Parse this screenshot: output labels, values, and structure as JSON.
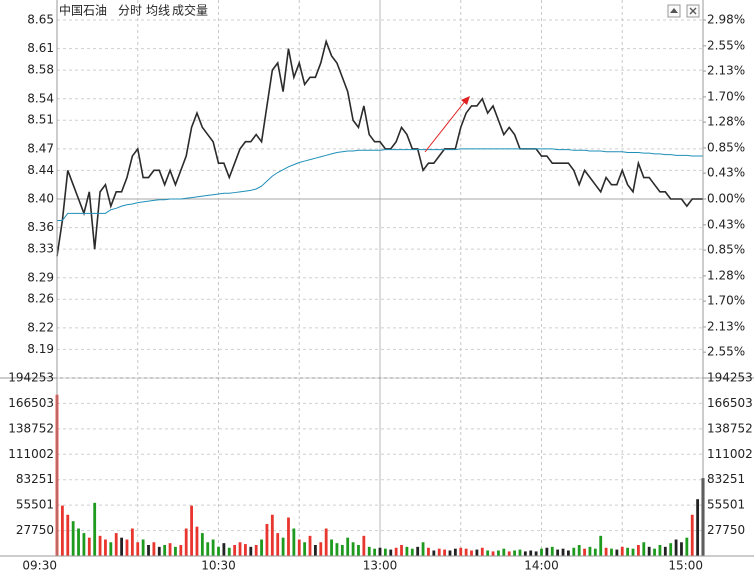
{
  "chart_data": [
    {
      "type": "line",
      "title": "中国石油",
      "subtitle": "分时",
      "ylim": [
        8.15,
        8.65
      ],
      "yticks": [
        8.65,
        8.61,
        8.58,
        8.54,
        8.51,
        8.47,
        8.44,
        {
          "value": 8.4,
          "label": "8.40"
        },
        8.36,
        8.33,
        8.29,
        8.26,
        8.22,
        8.19
      ],
      "y2lim": [
        -2.98,
        2.98
      ],
      "y2ticks": [
        {
          "value": 2.98,
          "label": "2.98%"
        },
        {
          "value": 2.55,
          "label": "2.55%"
        },
        {
          "value": 2.13,
          "label": "2.13%"
        },
        {
          "value": 1.7,
          "label": "1.70%"
        },
        {
          "value": 1.28,
          "label": "1.28%"
        },
        {
          "value": 0.85,
          "label": "0.85%"
        },
        {
          "value": 0.43,
          "label": "0.43%"
        },
        {
          "value": 0,
          "label": "0.00%"
        },
        {
          "value": -0.43,
          "label": "0.43%"
        },
        {
          "value": -0.85,
          "label": "0.85%"
        },
        {
          "value": -1.28,
          "label": "1.28%"
        },
        {
          "value": -1.7,
          "label": "1.70%"
        },
        {
          "value": -2.13,
          "label": "2.13%"
        },
        {
          "value": -2.55,
          "label": "2.55%"
        }
      ],
      "grid": true,
      "series": [
        {
          "color": "#2b2b2b",
          "values": [
            8.32,
            8.37,
            8.44,
            8.42,
            8.4,
            8.38,
            8.41,
            8.33,
            8.41,
            8.42,
            8.39,
            8.41,
            8.41,
            8.43,
            8.46,
            8.47,
            8.43,
            8.43,
            8.44,
            8.44,
            8.42,
            8.44,
            8.42,
            8.44,
            8.46,
            8.5,
            8.52,
            8.5,
            8.49,
            8.48,
            8.45,
            8.45,
            8.43,
            8.45,
            8.47,
            8.48,
            8.48,
            8.49,
            8.48,
            8.53,
            8.58,
            8.59,
            8.55,
            8.61,
            8.57,
            8.59,
            8.56,
            8.57,
            8.57,
            8.59,
            8.62,
            8.6,
            8.59,
            8.57,
            8.55,
            8.51,
            8.5,
            8.53,
            8.49,
            8.48,
            8.48,
            8.47,
            8.47,
            8.48,
            8.5,
            8.49,
            8.47,
            8.47,
            8.44,
            8.45,
            8.45,
            8.46,
            8.47,
            8.47,
            8.47,
            8.5,
            8.52,
            8.53,
            8.53,
            8.54,
            8.52,
            8.53,
            8.51,
            8.49,
            8.5,
            8.49,
            8.47,
            8.47,
            8.47,
            8.47,
            8.46,
            8.46,
            8.45,
            8.45,
            8.45,
            8.45,
            8.44,
            8.42,
            8.44,
            8.43,
            8.42,
            8.41,
            8.43,
            8.42,
            8.42,
            8.44,
            8.42,
            8.41,
            8.45,
            8.43,
            8.43,
            8.42,
            8.41,
            8.41,
            8.4,
            8.4,
            8.4,
            8.39,
            8.4,
            8.4,
            8.4
          ]
        },
        {
          "name": "均线",
          "color": "#1f8fb8",
          "values": [
            8.37,
            8.37,
            8.38,
            8.38,
            8.38,
            8.38,
            8.38,
            8.38,
            8.38,
            8.38,
            8.385,
            8.387,
            8.39,
            8.392,
            8.393,
            8.395,
            8.396,
            8.397,
            8.398,
            8.399,
            8.399,
            8.4,
            8.4,
            8.4,
            8.401,
            8.402,
            8.403,
            8.404,
            8.405,
            8.406,
            8.407,
            8.408,
            8.408,
            8.409,
            8.41,
            8.411,
            8.412,
            8.414,
            8.418,
            8.425,
            8.432,
            8.437,
            8.441,
            8.445,
            8.448,
            8.451,
            8.453,
            8.455,
            8.457,
            8.459,
            8.461,
            8.463,
            8.465,
            8.466,
            8.467,
            8.467,
            8.468,
            8.468,
            8.468,
            8.468,
            8.468,
            8.469,
            8.469,
            8.469,
            8.469,
            8.469,
            8.469,
            8.469,
            8.469,
            8.469,
            8.469,
            8.469,
            8.469,
            8.469,
            8.469,
            8.47,
            8.47,
            8.47,
            8.47,
            8.47,
            8.47,
            8.47,
            8.47,
            8.47,
            8.47,
            8.47,
            8.47,
            8.47,
            8.47,
            8.47,
            8.47,
            8.47,
            8.47,
            8.469,
            8.469,
            8.469,
            8.468,
            8.468,
            8.468,
            8.467,
            8.467,
            8.467,
            8.466,
            8.466,
            8.466,
            8.466,
            8.465,
            8.465,
            8.465,
            8.464,
            8.464,
            8.463,
            8.463,
            8.462,
            8.462,
            8.461,
            8.461,
            8.461,
            8.46,
            8.46,
            8.46
          ]
        }
      ]
    },
    {
      "type": "bar",
      "title": "成交量",
      "up_color": "#e8352e",
      "down_color": "#1e9a1e",
      "flat_color": "#222222",
      "ylim": [
        0,
        194253
      ],
      "yticks": [
        27750,
        55501,
        83251,
        111002,
        138752,
        166503,
        194253
      ],
      "grid": true,
      "categories": [
        "09:30",
        null,
        null,
        null,
        null,
        null,
        null,
        null,
        null,
        null,
        null,
        null,
        null,
        null,
        null,
        null,
        null,
        null,
        null,
        null,
        null,
        null,
        null,
        null,
        null,
        null,
        null,
        null,
        null,
        null,
        "10:30",
        null,
        null,
        null,
        null,
        null,
        null,
        null,
        null,
        null,
        null,
        null,
        null,
        null,
        null,
        null,
        null,
        null,
        null,
        null,
        null,
        null,
        null,
        null,
        null,
        null,
        null,
        null,
        null,
        null,
        "13:00",
        null,
        null,
        null,
        null,
        null,
        null,
        null,
        null,
        null,
        null,
        null,
        null,
        null,
        null,
        null,
        null,
        null,
        null,
        null,
        null,
        null,
        null,
        null,
        null,
        null,
        null,
        null,
        null,
        null,
        "14:00",
        null,
        null,
        null,
        null,
        null,
        null,
        null,
        null,
        null,
        null,
        null,
        null,
        null,
        null,
        null,
        null,
        null,
        null,
        null,
        null,
        null,
        null,
        null,
        null,
        null,
        null,
        null,
        null,
        null,
        "15:00"
      ],
      "values": [
        176000,
        55000,
        45000,
        38000,
        30000,
        25000,
        20000,
        58000,
        22000,
        18000,
        15000,
        25000,
        20000,
        18000,
        30000,
        15000,
        18000,
        12000,
        15000,
        10000,
        12000,
        14000,
        10000,
        12000,
        30000,
        55000,
        32000,
        25000,
        15000,
        18000,
        10000,
        14000,
        9000,
        12000,
        15000,
        13000,
        10000,
        12000,
        18000,
        35000,
        45000,
        25000,
        20000,
        42000,
        30000,
        18000,
        15000,
        22000,
        12000,
        15000,
        30000,
        18000,
        14000,
        12000,
        20000,
        15000,
        12000,
        22000,
        10000,
        8000,
        9000,
        8000,
        7000,
        9000,
        12000,
        10000,
        8000,
        10000,
        15000,
        9000,
        6000,
        8000,
        7000,
        6000,
        8000,
        9000,
        8000,
        6000,
        7000,
        9000,
        6000,
        5000,
        6000,
        8000,
        5000,
        6000,
        7000,
        5000,
        6000,
        5000,
        8000,
        9000,
        10000,
        7000,
        8000,
        6000,
        9000,
        12000,
        8000,
        10000,
        8000,
        22000,
        9000,
        8000,
        7000,
        10000,
        9000,
        8000,
        12000,
        15000,
        10000,
        8000,
        12000,
        10000,
        14000,
        18000,
        15000,
        20000,
        45000,
        62000,
        85000
      ]
    }
  ]
}
